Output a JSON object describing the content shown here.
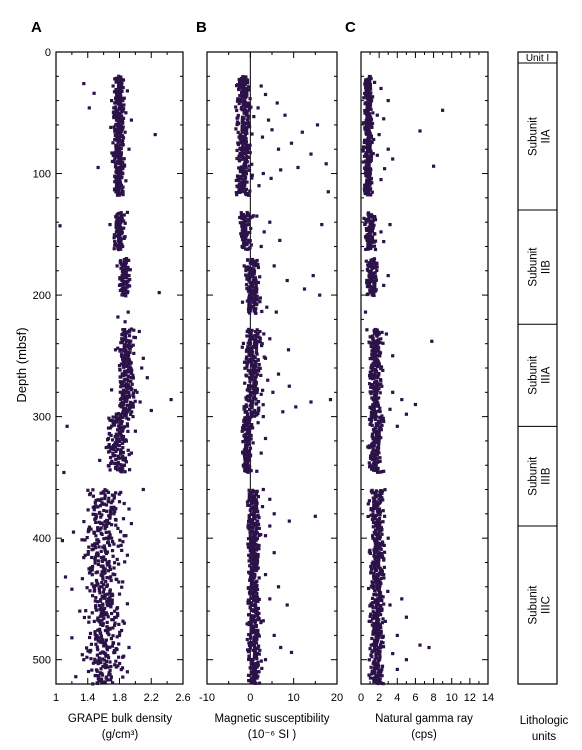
{
  "chart_data": [
    {
      "type": "scatter",
      "panel_label": "A",
      "xlabel": "GRAPE bulk density",
      "xunit": "(g/cm³)",
      "ylabel": "Depth (mbsf)",
      "xlim": [
        1,
        2.6
      ],
      "ylim": [
        0,
        520
      ],
      "y_inverted": true,
      "xticks": [
        "1",
        "1.4",
        "1.8",
        "2.2",
        "2.6"
      ],
      "yticks": [
        "0",
        "100",
        "200",
        "300",
        "400",
        "500"
      ],
      "marker_color": "#2b1248",
      "points": [
        [
          1.79,
          20
        ],
        [
          1.76,
          22
        ],
        [
          1.85,
          23
        ],
        [
          1.35,
          26
        ],
        [
          1.72,
          28
        ],
        [
          1.82,
          30
        ],
        [
          1.9,
          32
        ],
        [
          1.48,
          34
        ],
        [
          1.78,
          36
        ],
        [
          1.86,
          38
        ],
        [
          1.7,
          40
        ],
        [
          1.74,
          42
        ],
        [
          1.83,
          44
        ],
        [
          1.42,
          46
        ],
        [
          1.77,
          48
        ],
        [
          1.88,
          50
        ],
        [
          1.8,
          52
        ],
        [
          1.73,
          54
        ],
        [
          1.95,
          56
        ],
        [
          1.84,
          58
        ],
        [
          1.76,
          60
        ],
        [
          1.69,
          62
        ],
        [
          1.81,
          64
        ],
        [
          1.87,
          66
        ],
        [
          2.25,
          68
        ],
        [
          1.79,
          70
        ],
        [
          1.74,
          72
        ],
        [
          1.83,
          75
        ],
        [
          1.78,
          78
        ],
        [
          1.92,
          80
        ],
        [
          1.77,
          85
        ],
        [
          1.82,
          88
        ],
        [
          1.71,
          90
        ],
        [
          1.86,
          93
        ],
        [
          1.53,
          95
        ],
        [
          1.79,
          97
        ],
        [
          1.84,
          100
        ],
        [
          1.75,
          103
        ],
        [
          1.88,
          106
        ],
        [
          1.8,
          109
        ],
        [
          1.76,
          112
        ],
        [
          1.83,
          115
        ],
        [
          1.9,
          132
        ],
        [
          1.82,
          135
        ],
        [
          1.76,
          140
        ],
        [
          1.68,
          142
        ],
        [
          1.05,
          143
        ],
        [
          1.85,
          145
        ],
        [
          1.79,
          148
        ],
        [
          1.87,
          152
        ],
        [
          1.74,
          156
        ],
        [
          1.84,
          160
        ],
        [
          1.89,
          170
        ],
        [
          1.81,
          173
        ],
        [
          1.77,
          176
        ],
        [
          1.86,
          180
        ],
        [
          1.92,
          184
        ],
        [
          1.83,
          188
        ],
        [
          1.8,
          192
        ],
        [
          1.88,
          196
        ],
        [
          2.3,
          198
        ],
        [
          1.85,
          200
        ],
        [
          1.91,
          214
        ],
        [
          1.78,
          218
        ],
        [
          1.87,
          222
        ],
        [
          1.95,
          228
        ],
        [
          2.05,
          230
        ],
        [
          1.84,
          232
        ],
        [
          2.0,
          235
        ],
        [
          1.89,
          238
        ],
        [
          2.6,
          240
        ],
        [
          1.92,
          242
        ],
        [
          1.75,
          245
        ],
        [
          1.98,
          248
        ],
        [
          1.86,
          250
        ],
        [
          2.1,
          252
        ],
        [
          1.93,
          255
        ],
        [
          1.8,
          258
        ],
        [
          2.08,
          260
        ],
        [
          1.95,
          262
        ],
        [
          1.88,
          265
        ],
        [
          2.15,
          268
        ],
        [
          1.82,
          272
        ],
        [
          1.7,
          278
        ],
        [
          2.02,
          280
        ],
        [
          1.9,
          284
        ],
        [
          2.45,
          286
        ],
        [
          2.06,
          288
        ],
        [
          1.94,
          290
        ],
        [
          1.85,
          293
        ],
        [
          2.2,
          295
        ],
        [
          1.76,
          298
        ],
        [
          1.97,
          300
        ],
        [
          1.68,
          303
        ],
        [
          1.9,
          306
        ],
        [
          1.14,
          308
        ],
        [
          1.84,
          310
        ],
        [
          2.0,
          312
        ],
        [
          1.78,
          316
        ],
        [
          1.88,
          320
        ],
        [
          1.7,
          325
        ],
        [
          1.95,
          330
        ],
        [
          1.82,
          334
        ],
        [
          1.55,
          336
        ],
        [
          1.86,
          340
        ],
        [
          1.1,
          346
        ],
        [
          2.1,
          360
        ],
        [
          1.8,
          370
        ],
        [
          1.6,
          372
        ],
        [
          1.92,
          376
        ],
        [
          1.73,
          380
        ],
        [
          1.85,
          384
        ],
        [
          1.65,
          386
        ],
        [
          1.95,
          388
        ],
        [
          1.78,
          392
        ],
        [
          1.22,
          395
        ],
        [
          1.88,
          398
        ],
        [
          1.7,
          400
        ],
        [
          1.08,
          402
        ],
        [
          1.82,
          406
        ],
        [
          1.62,
          410
        ],
        [
          1.9,
          414
        ],
        [
          1.35,
          416
        ],
        [
          1.74,
          430
        ],
        [
          1.12,
          432
        ],
        [
          1.84,
          436
        ],
        [
          1.58,
          440
        ],
        [
          1.2,
          442
        ],
        [
          1.8,
          446
        ],
        [
          1.66,
          450
        ],
        [
          1.9,
          454
        ],
        [
          1.3,
          460
        ],
        [
          1.76,
          465
        ],
        [
          1.86,
          470
        ],
        [
          1.55,
          475
        ],
        [
          1.8,
          480
        ],
        [
          1.2,
          482
        ],
        [
          1.72,
          486
        ],
        [
          1.92,
          490
        ],
        [
          1.6,
          494
        ],
        [
          1.84,
          498
        ],
        [
          1.35,
          500
        ],
        [
          1.78,
          505
        ],
        [
          1.9,
          510
        ],
        [
          1.25,
          514
        ]
      ],
      "dense_runs": [
        {
          "from": 20,
          "to": 118,
          "center": 1.79,
          "spread": 0.09
        },
        {
          "from": 132,
          "to": 162,
          "center": 1.8,
          "spread": 0.09
        },
        {
          "from": 170,
          "to": 200,
          "center": 1.86,
          "spread": 0.09
        },
        {
          "from": 228,
          "to": 300,
          "center": 1.88,
          "spread": 0.14
        },
        {
          "from": 300,
          "to": 345,
          "center": 1.78,
          "spread": 0.2
        },
        {
          "from": 360,
          "to": 520,
          "center": 1.6,
          "spread": 0.32
        }
      ]
    },
    {
      "type": "scatter",
      "panel_label": "B",
      "xlabel": "Magnetic susceptibility",
      "xunit": "(10⁻⁶ SI )",
      "xlim": [
        -10,
        20
      ],
      "ylim": [
        0,
        520
      ],
      "y_inverted": true,
      "xticks": [
        "-10",
        "0",
        "10",
        "20"
      ],
      "yticks": [
        "0",
        "100",
        "200",
        "300",
        "400",
        "500"
      ],
      "reference_line_x": 0,
      "marker_color": "#2b1248",
      "points": [
        [
          2.5,
          28
        ],
        [
          3.5,
          35
        ],
        [
          6.2,
          42
        ],
        [
          1.8,
          46
        ],
        [
          8.0,
          52
        ],
        [
          4.2,
          56
        ],
        [
          15.5,
          60
        ],
        [
          5.0,
          64
        ],
        [
          12.0,
          66
        ],
        [
          2.8,
          70
        ],
        [
          9.5,
          75
        ],
        [
          6.5,
          80
        ],
        [
          14.0,
          84
        ],
        [
          17.5,
          92
        ],
        [
          11.0,
          95
        ],
        [
          7.0,
          97
        ],
        [
          3.0,
          100
        ],
        [
          4.8,
          104
        ],
        [
          2.0,
          110
        ],
        [
          18.0,
          115
        ],
        [
          1.5,
          135
        ],
        [
          4.5,
          140
        ],
        [
          16.5,
          142
        ],
        [
          3.2,
          148
        ],
        [
          6.8,
          155
        ],
        [
          2.5,
          160
        ],
        [
          5.5,
          176
        ],
        [
          14.5,
          184
        ],
        [
          8.5,
          188
        ],
        [
          12.5,
          195
        ],
        [
          16.0,
          200
        ],
        [
          3.8,
          210
        ],
        [
          6.0,
          214
        ],
        [
          2.2,
          230
        ],
        [
          4.5,
          236
        ],
        [
          1.5,
          240
        ],
        [
          8.8,
          245
        ],
        [
          3.5,
          252
        ],
        [
          2.0,
          260
        ],
        [
          6.5,
          265
        ],
        [
          4.0,
          270
        ],
        [
          9.0,
          275
        ],
        [
          5.2,
          280
        ],
        [
          18.5,
          286
        ],
        [
          14.0,
          288
        ],
        [
          10.5,
          292
        ],
        [
          7.5,
          296
        ],
        [
          3.0,
          300
        ],
        [
          1.8,
          305
        ],
        [
          3.5,
          318
        ],
        [
          2.5,
          330
        ],
        [
          1.5,
          345
        ],
        [
          3.0,
          360
        ],
        [
          4.5,
          368
        ],
        [
          2.8,
          374
        ],
        [
          5.5,
          380
        ],
        [
          15.0,
          382
        ],
        [
          9.0,
          386
        ],
        [
          4.5,
          390
        ],
        [
          3.5,
          398
        ],
        [
          2.0,
          406
        ],
        [
          5.5,
          412
        ],
        [
          3.5,
          430
        ],
        [
          6.5,
          440
        ],
        [
          4.5,
          450
        ],
        [
          8.5,
          455
        ],
        [
          3.0,
          468
        ],
        [
          5.5,
          480
        ],
        [
          7.0,
          490
        ],
        [
          9.5,
          494
        ],
        [
          3.5,
          500
        ],
        [
          2.0,
          510
        ]
      ],
      "dense_runs": [
        {
          "from": 20,
          "to": 118,
          "center": -1.5,
          "spread": 2.5
        },
        {
          "from": 132,
          "to": 162,
          "center": -1.0,
          "spread": 2.0
        },
        {
          "from": 170,
          "to": 215,
          "center": 0.5,
          "spread": 2.5
        },
        {
          "from": 228,
          "to": 300,
          "center": 0.5,
          "spread": 3.0
        },
        {
          "from": 300,
          "to": 345,
          "center": -0.8,
          "spread": 1.6
        },
        {
          "from": 360,
          "to": 520,
          "center": 0.8,
          "spread": 2.0
        }
      ]
    },
    {
      "type": "scatter",
      "panel_label": "C",
      "xlabel": "Natural gamma ray",
      "xunit": "(cps)",
      "xlim": [
        0,
        14
      ],
      "ylim": [
        0,
        520
      ],
      "y_inverted": true,
      "xticks": [
        "0",
        "2",
        "4",
        "6",
        "8",
        "10",
        "12",
        "14"
      ],
      "yticks": [
        "0",
        "100",
        "200",
        "300",
        "400",
        "500"
      ],
      "marker_color": "#2b1248",
      "points": [
        [
          1.5,
          25
        ],
        [
          2.2,
          30
        ],
        [
          0.8,
          35
        ],
        [
          3.0,
          40
        ],
        [
          9.0,
          48
        ],
        [
          1.8,
          52
        ],
        [
          2.5,
          55
        ],
        [
          0.6,
          58
        ],
        [
          1.2,
          62
        ],
        [
          6.5,
          65
        ],
        [
          2.0,
          68
        ],
        [
          1.4,
          72
        ],
        [
          3.0,
          80
        ],
        [
          1.8,
          85
        ],
        [
          3.5,
          88
        ],
        [
          8.0,
          94
        ],
        [
          2.6,
          96
        ],
        [
          1.0,
          100
        ],
        [
          2.2,
          105
        ],
        [
          14.0,
          112
        ],
        [
          1.6,
          138
        ],
        [
          3.2,
          142
        ],
        [
          2.2,
          148
        ],
        [
          0.8,
          152
        ],
        [
          2.5,
          156
        ],
        [
          1.6,
          176
        ],
        [
          3.0,
          184
        ],
        [
          2.5,
          192
        ],
        [
          1.2,
          198
        ],
        [
          0.5,
          214
        ],
        [
          2.8,
          232
        ],
        [
          7.8,
          238
        ],
        [
          1.8,
          245
        ],
        [
          3.5,
          250
        ],
        [
          2.4,
          262
        ],
        [
          1.5,
          272
        ],
        [
          3.5,
          280
        ],
        [
          4.5,
          286
        ],
        [
          6.0,
          290
        ],
        [
          3.2,
          294
        ],
        [
          5.0,
          298
        ],
        [
          2.5,
          304
        ],
        [
          4.0,
          308
        ],
        [
          1.8,
          312
        ],
        [
          2.0,
          320
        ],
        [
          1.2,
          330
        ],
        [
          2.5,
          345
        ],
        [
          1.4,
          370
        ],
        [
          2.6,
          382
        ],
        [
          1.8,
          392
        ],
        [
          3.0,
          400
        ],
        [
          2.0,
          412
        ],
        [
          2.5,
          430
        ],
        [
          2.0,
          442
        ],
        [
          4.5,
          450
        ],
        [
          3.2,
          455
        ],
        [
          5.0,
          465
        ],
        [
          2.0,
          472
        ],
        [
          4.0,
          480
        ],
        [
          6.5,
          488
        ],
        [
          7.5,
          490
        ],
        [
          3.5,
          495
        ],
        [
          5.0,
          500
        ],
        [
          4.0,
          508
        ],
        [
          1.5,
          515
        ]
      ],
      "dense_runs": [
        {
          "from": 20,
          "to": 118,
          "center": 0.8,
          "spread": 0.7
        },
        {
          "from": 132,
          "to": 162,
          "center": 1.0,
          "spread": 0.8
        },
        {
          "from": 170,
          "to": 200,
          "center": 1.2,
          "spread": 0.9
        },
        {
          "from": 228,
          "to": 300,
          "center": 1.6,
          "spread": 1.0
        },
        {
          "from": 300,
          "to": 345,
          "center": 1.6,
          "spread": 1.0
        },
        {
          "from": 360,
          "to": 520,
          "center": 1.8,
          "spread": 1.2
        }
      ]
    }
  ],
  "lithology": {
    "title_line1": "Lithologic",
    "title_line2": "units",
    "units": [
      {
        "label": "Unit I",
        "top": 0,
        "bottom": 9
      },
      {
        "label": "Subunit IIA",
        "top": 9,
        "bottom": 130
      },
      {
        "label": "Subunit IIB",
        "top": 130,
        "bottom": 224
      },
      {
        "label": "Subunit IIIA",
        "top": 224,
        "bottom": 308
      },
      {
        "label": "Subunit IIIB",
        "top": 308,
        "bottom": 390
      },
      {
        "label": "Subunit IIIC",
        "top": 390,
        "bottom": 520
      }
    ]
  }
}
